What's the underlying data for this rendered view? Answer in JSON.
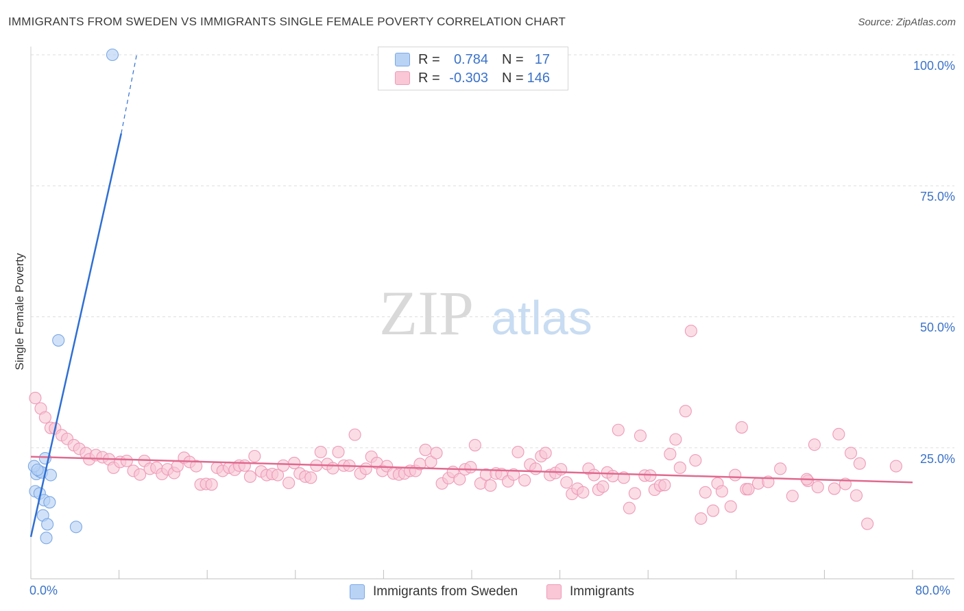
{
  "title": "IMMIGRANTS FROM SWEDEN VS IMMIGRANTS SINGLE FEMALE POVERTY CORRELATION CHART",
  "source": "Source: ZipAtlas.com",
  "watermark": {
    "zip": "ZIP",
    "atlas": "atlas"
  },
  "legend": {
    "r_label": "R =",
    "n_label": "N =",
    "rows": [
      {
        "r": "0.784",
        "n": "17",
        "fill": "#b9d3f5",
        "stroke": "#7aa7e6"
      },
      {
        "r": "-0.303",
        "n": "146",
        "fill": "#f9c7d6",
        "stroke": "#ee9ab6"
      }
    ]
  },
  "bottom_legend": [
    "Immigrants from Sweden",
    "Immigrants"
  ],
  "colors": {
    "blue": "#3a72c8",
    "blue_line": "#2f6fd2",
    "pink_line": "#e0698f",
    "grid": "#dddddd"
  },
  "chart_data": {
    "type": "scatter",
    "title": "IMMIGRANTS FROM SWEDEN VS IMMIGRANTS SINGLE FEMALE POVERTY CORRELATION CHART",
    "xlabel": "",
    "ylabel": "Single Female Poverty",
    "xlim": [
      0,
      80
    ],
    "ylim": [
      0,
      100
    ],
    "x_tick_labels": [
      "0.0%",
      "80.0%"
    ],
    "y_ticks": [
      25,
      50,
      75,
      100
    ],
    "y_tick_labels": [
      "25.0%",
      "50.0%",
      "75.0%",
      "100.0%"
    ],
    "grid": true,
    "legend_position": "top-center",
    "series": [
      {
        "name": "Immigrants from Sweden",
        "r": 0.784,
        "n": 17,
        "points": [
          [
            7.4,
            100.0
          ],
          [
            2.5,
            45.5
          ],
          [
            0.5,
            20.0
          ],
          [
            0.8,
            20.5
          ],
          [
            1.0,
            20.3
          ],
          [
            1.8,
            19.8
          ],
          [
            1.3,
            23.0
          ],
          [
            0.4,
            16.7
          ],
          [
            0.8,
            16.3
          ],
          [
            1.2,
            15.0
          ],
          [
            1.7,
            14.6
          ],
          [
            1.1,
            12.1
          ],
          [
            1.5,
            10.4
          ],
          [
            4.1,
            9.9
          ],
          [
            1.4,
            7.8
          ],
          [
            0.3,
            21.5
          ],
          [
            0.6,
            20.8
          ]
        ],
        "trend": {
          "x0": 0.0,
          "y0": 8.0,
          "x1": 8.2,
          "y1": 85.0,
          "dashed_to": {
            "x": 9.6,
            "y": 100.0
          }
        }
      },
      {
        "name": "Immigrants",
        "r": -0.303,
        "n": 146,
        "points": [
          [
            0.4,
            34.5
          ],
          [
            0.9,
            32.5
          ],
          [
            1.3,
            30.8
          ],
          [
            1.8,
            28.8
          ],
          [
            2.2,
            28.7
          ],
          [
            2.8,
            27.4
          ],
          [
            3.3,
            26.7
          ],
          [
            3.9,
            25.5
          ],
          [
            4.4,
            24.8
          ],
          [
            5.0,
            24.0
          ],
          [
            5.3,
            22.8
          ],
          [
            5.9,
            23.6
          ],
          [
            6.5,
            23.2
          ],
          [
            7.1,
            22.8
          ],
          [
            7.5,
            21.2
          ],
          [
            8.1,
            22.3
          ],
          [
            8.7,
            22.5
          ],
          [
            9.3,
            20.6
          ],
          [
            9.9,
            19.9
          ],
          [
            10.3,
            22.5
          ],
          [
            10.8,
            21.0
          ],
          [
            11.4,
            21.2
          ],
          [
            11.9,
            20.0
          ],
          [
            12.4,
            20.9
          ],
          [
            13.0,
            20.2
          ],
          [
            13.3,
            21.5
          ],
          [
            13.9,
            23.1
          ],
          [
            14.4,
            22.3
          ],
          [
            15.0,
            21.5
          ],
          [
            15.4,
            18.0
          ],
          [
            15.9,
            18.1
          ],
          [
            16.4,
            18.0
          ],
          [
            16.9,
            21.2
          ],
          [
            17.4,
            20.6
          ],
          [
            18.0,
            21.2
          ],
          [
            18.5,
            20.8
          ],
          [
            18.9,
            21.6
          ],
          [
            19.4,
            21.6
          ],
          [
            19.9,
            19.5
          ],
          [
            20.3,
            23.4
          ],
          [
            20.9,
            20.5
          ],
          [
            21.4,
            19.8
          ],
          [
            21.9,
            20.0
          ],
          [
            22.4,
            19.8
          ],
          [
            22.9,
            21.6
          ],
          [
            23.4,
            18.3
          ],
          [
            23.9,
            22.1
          ],
          [
            24.4,
            20.1
          ],
          [
            24.9,
            19.5
          ],
          [
            25.4,
            19.3
          ],
          [
            25.9,
            21.6
          ],
          [
            26.3,
            24.2
          ],
          [
            26.9,
            21.9
          ],
          [
            27.4,
            21.1
          ],
          [
            27.9,
            24.2
          ],
          [
            28.4,
            21.6
          ],
          [
            28.9,
            21.6
          ],
          [
            29.4,
            27.5
          ],
          [
            29.9,
            20.1
          ],
          [
            30.4,
            21.0
          ],
          [
            30.9,
            23.3
          ],
          [
            31.4,
            22.1
          ],
          [
            31.9,
            20.6
          ],
          [
            32.3,
            21.5
          ],
          [
            32.9,
            20.1
          ],
          [
            33.4,
            19.9
          ],
          [
            33.9,
            20.1
          ],
          [
            34.4,
            20.6
          ],
          [
            34.9,
            20.6
          ],
          [
            35.3,
            21.9
          ],
          [
            35.8,
            24.6
          ],
          [
            36.3,
            22.3
          ],
          [
            36.8,
            24.0
          ],
          [
            37.3,
            18.2
          ],
          [
            37.9,
            19.2
          ],
          [
            38.3,
            20.4
          ],
          [
            38.9,
            19.0
          ],
          [
            39.4,
            20.9
          ],
          [
            39.9,
            21.3
          ],
          [
            40.3,
            25.5
          ],
          [
            40.8,
            18.2
          ],
          [
            41.3,
            19.9
          ],
          [
            41.7,
            17.8
          ],
          [
            42.2,
            20.1
          ],
          [
            42.7,
            20.0
          ],
          [
            43.3,
            18.6
          ],
          [
            43.8,
            19.9
          ],
          [
            44.2,
            24.2
          ],
          [
            44.8,
            18.8
          ],
          [
            45.3,
            21.8
          ],
          [
            45.8,
            21.0
          ],
          [
            46.3,
            23.4
          ],
          [
            46.7,
            24.0
          ],
          [
            47.1,
            19.8
          ],
          [
            47.6,
            20.2
          ],
          [
            48.1,
            20.9
          ],
          [
            48.6,
            18.4
          ],
          [
            49.1,
            16.2
          ],
          [
            49.6,
            17.2
          ],
          [
            50.1,
            16.5
          ],
          [
            50.6,
            21.0
          ],
          [
            51.1,
            19.8
          ],
          [
            51.5,
            17.0
          ],
          [
            51.9,
            17.6
          ],
          [
            52.3,
            20.3
          ],
          [
            52.8,
            19.6
          ],
          [
            53.3,
            28.4
          ],
          [
            53.8,
            19.3
          ],
          [
            54.3,
            13.5
          ],
          [
            54.8,
            16.3
          ],
          [
            55.3,
            27.3
          ],
          [
            55.7,
            19.7
          ],
          [
            56.2,
            19.7
          ],
          [
            56.6,
            17.0
          ],
          [
            57.1,
            17.8
          ],
          [
            57.5,
            17.9
          ],
          [
            58.0,
            23.8
          ],
          [
            58.5,
            26.6
          ],
          [
            58.9,
            21.2
          ],
          [
            59.4,
            32.0
          ],
          [
            59.9,
            47.3
          ],
          [
            60.3,
            22.6
          ],
          [
            60.8,
            11.5
          ],
          [
            61.2,
            16.5
          ],
          [
            61.9,
            13.0
          ],
          [
            62.3,
            18.2
          ],
          [
            62.7,
            16.7
          ],
          [
            63.5,
            13.8
          ],
          [
            63.9,
            19.8
          ],
          [
            64.5,
            28.9
          ],
          [
            64.9,
            17.1
          ],
          [
            65.1,
            17.1
          ],
          [
            66.0,
            18.2
          ],
          [
            66.9,
            18.5
          ],
          [
            68.0,
            21.0
          ],
          [
            69.1,
            15.8
          ],
          [
            70.5,
            18.7
          ],
          [
            71.1,
            25.6
          ],
          [
            71.4,
            17.5
          ],
          [
            72.9,
            17.2
          ],
          [
            73.3,
            27.6
          ],
          [
            73.9,
            18.1
          ],
          [
            74.4,
            24.0
          ],
          [
            74.9,
            15.9
          ],
          [
            75.2,
            22.0
          ],
          [
            75.9,
            10.5
          ],
          [
            78.5,
            21.5
          ],
          [
            70.4,
            19.0
          ]
        ],
        "trend": {
          "x0": 0.0,
          "y0": 23.3,
          "x1": 80.0,
          "y1": 18.4
        }
      }
    ]
  }
}
